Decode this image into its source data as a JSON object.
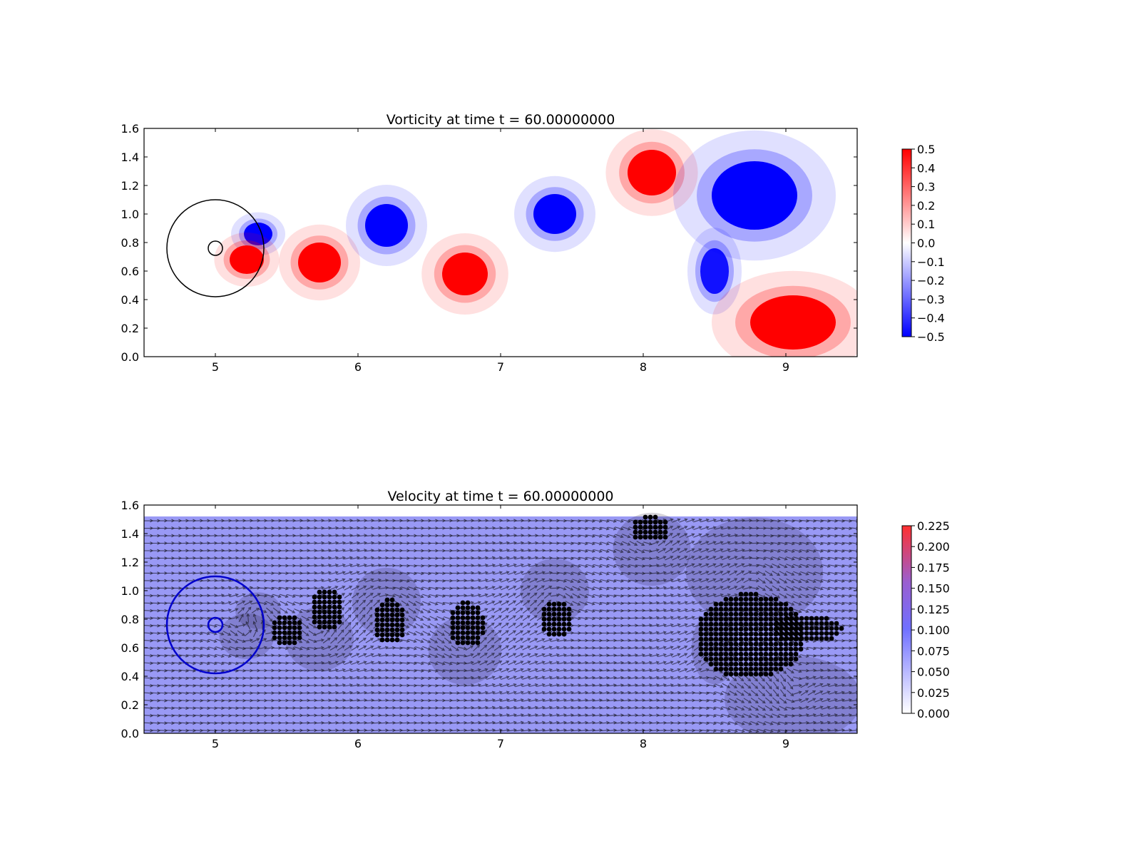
{
  "chart_data": [
    {
      "type": "heatmap",
      "title": "Vorticity at time t =    60.00000000",
      "xlim": [
        4.5,
        9.5
      ],
      "ylim": [
        0.0,
        1.6
      ],
      "xticks": [
        "5",
        "6",
        "7",
        "8",
        "9"
      ],
      "yticks": [
        "0.0",
        "0.2",
        "0.4",
        "0.6",
        "0.8",
        "1.0",
        "1.2",
        "1.4",
        "1.6"
      ],
      "colormap": "bwr",
      "colorbar": {
        "range": [
          -0.5,
          0.5
        ],
        "ticks": [
          "0.5",
          "0.4",
          "0.3",
          "0.2",
          "0.1",
          "0.0",
          "−0.1",
          "−0.2",
          "−0.3",
          "−0.4",
          "−0.5"
        ],
        "colors": {
          "low": "#0000ff",
          "mid": "#ffffff",
          "high": "#ff0000"
        }
      },
      "overlays": [
        {
          "shape": "circle",
          "center": [
            5.0,
            0.76
          ],
          "radius": 0.34,
          "color": "#000000"
        },
        {
          "shape": "circle",
          "center": [
            5.0,
            0.76
          ],
          "radius": 0.05,
          "color": "#000000"
        }
      ],
      "vortices": [
        {
          "x": 5.3,
          "y": 0.86,
          "rx": 0.1,
          "ry": 0.08,
          "sign": -1,
          "strength": 0.5
        },
        {
          "x": 5.22,
          "y": 0.68,
          "rx": 0.12,
          "ry": 0.1,
          "sign": 1,
          "strength": 0.5
        },
        {
          "x": 5.73,
          "y": 0.66,
          "rx": 0.15,
          "ry": 0.14,
          "sign": 1,
          "strength": 0.5
        },
        {
          "x": 6.2,
          "y": 0.92,
          "rx": 0.15,
          "ry": 0.15,
          "sign": -1,
          "strength": 0.5
        },
        {
          "x": 6.75,
          "y": 0.58,
          "rx": 0.16,
          "ry": 0.15,
          "sign": 1,
          "strength": 0.5
        },
        {
          "x": 7.38,
          "y": 1.0,
          "rx": 0.15,
          "ry": 0.14,
          "sign": -1,
          "strength": 0.5
        },
        {
          "x": 8.06,
          "y": 1.29,
          "rx": 0.17,
          "ry": 0.16,
          "sign": 1,
          "strength": 0.5
        },
        {
          "x": 8.78,
          "y": 1.13,
          "rx": 0.3,
          "ry": 0.24,
          "sign": -1,
          "strength": 0.5
        },
        {
          "x": 8.5,
          "y": 0.6,
          "rx": 0.1,
          "ry": 0.16,
          "sign": -1,
          "strength": 0.45
        },
        {
          "x": 9.05,
          "y": 0.24,
          "rx": 0.3,
          "ry": 0.19,
          "sign": 1,
          "strength": 0.5
        }
      ]
    },
    {
      "type": "quiver",
      "title": "Velocity at time t =    60.00000000",
      "xlim": [
        4.5,
        9.5
      ],
      "ylim": [
        0.0,
        1.6
      ],
      "xticks": [
        "5",
        "6",
        "7",
        "8",
        "9"
      ],
      "yticks": [
        "0.0",
        "0.2",
        "0.4",
        "0.6",
        "0.8",
        "1.0",
        "1.2",
        "1.4",
        "1.6"
      ],
      "colorbar": {
        "range": [
          0.0,
          0.225
        ],
        "ticks": [
          "0.225",
          "0.200",
          "0.175",
          "0.150",
          "0.125",
          "0.100",
          "0.075",
          "0.050",
          "0.025",
          "0.000"
        ],
        "colors": {
          "low": "#ffffff",
          "mid": "#7070ff",
          "high": "#ff3030"
        }
      },
      "field_color": "#9999f5",
      "arrow_color": "#222233",
      "overlays": [
        {
          "shape": "circle",
          "center": [
            5.0,
            0.76
          ],
          "radius": 0.34,
          "color": "#0000cc"
        },
        {
          "shape": "circle",
          "center": [
            5.0,
            0.76
          ],
          "radius": 0.05,
          "color": "#0000cc"
        }
      ],
      "dot_regions": [
        {
          "x": 5.5,
          "y": 0.72,
          "rx": 0.12,
          "ry": 0.12
        },
        {
          "x": 5.78,
          "y": 0.86,
          "rx": 0.12,
          "ry": 0.15
        },
        {
          "x": 6.22,
          "y": 0.78,
          "rx": 0.12,
          "ry": 0.16
        },
        {
          "x": 6.76,
          "y": 0.76,
          "rx": 0.13,
          "ry": 0.16
        },
        {
          "x": 7.39,
          "y": 0.8,
          "rx": 0.12,
          "ry": 0.14
        },
        {
          "x": 8.05,
          "y": 1.43,
          "rx": 0.14,
          "ry": 0.09
        },
        {
          "x": 8.75,
          "y": 0.68,
          "rx": 0.38,
          "ry": 0.3
        },
        {
          "x": 9.15,
          "y": 0.73,
          "rx": 0.25,
          "ry": 0.1
        }
      ]
    }
  ]
}
